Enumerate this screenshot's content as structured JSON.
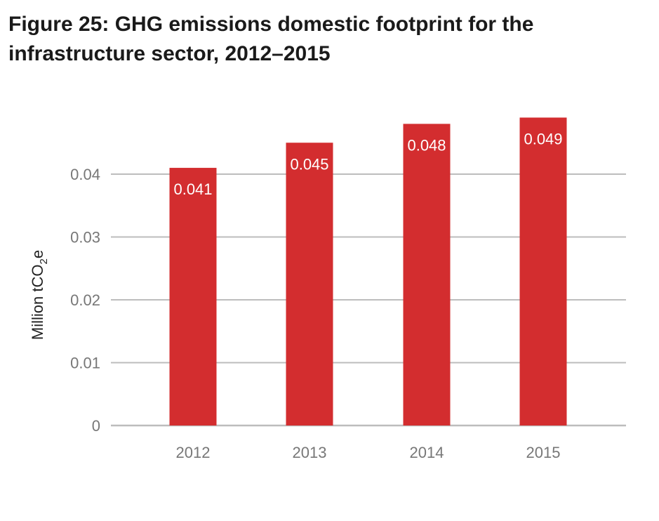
{
  "title_lines": [
    "Figure 25: GHG emissions domestic footprint for the",
    "infrastructure sector, 2012–2015"
  ],
  "chart_data": {
    "type": "bar",
    "categories": [
      "2012",
      "2013",
      "2014",
      "2015"
    ],
    "values": [
      0.041,
      0.045,
      0.048,
      0.049
    ],
    "data_labels": [
      "0.041",
      "0.045",
      "0.048",
      "0.049"
    ],
    "ylabel_main": "Million tCO",
    "ylabel_sub": "2",
    "ylabel_tail": "e",
    "ylim": [
      0,
      0.04
    ],
    "yticks": [
      0,
      0.01,
      0.02,
      0.03,
      0.04
    ],
    "ytick_labels": [
      "0",
      "0.01",
      "0.02",
      "0.03",
      "0.04"
    ],
    "grid": true,
    "bar_color": "#d32d2f",
    "grid_color": "#bdbdbd"
  }
}
